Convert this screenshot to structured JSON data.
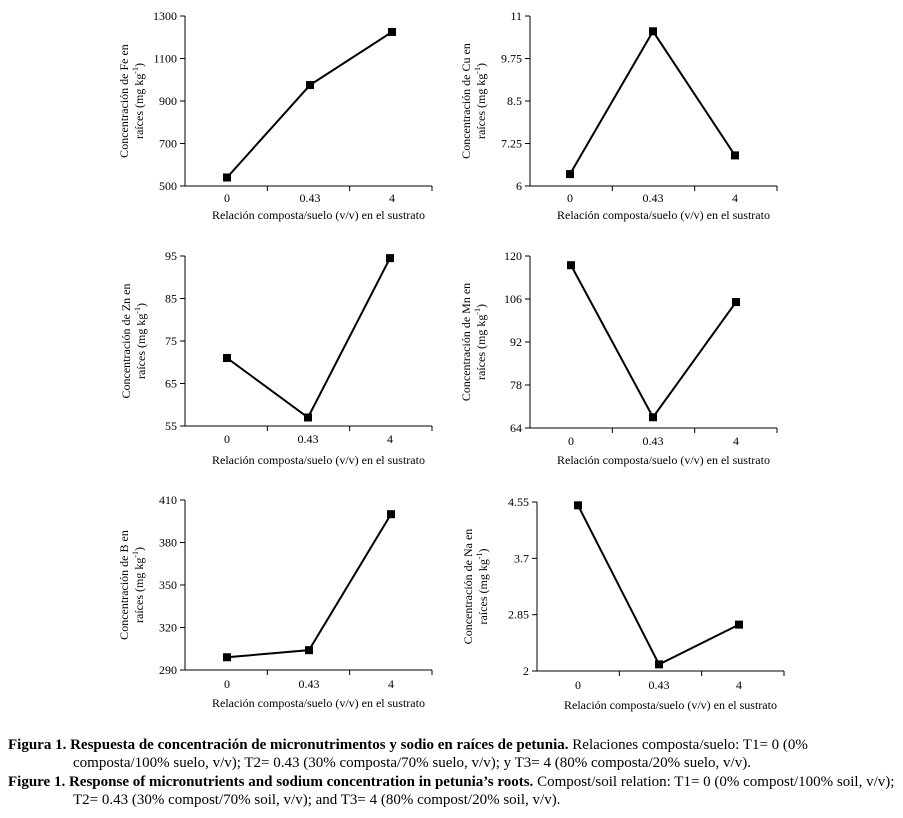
{
  "chart_data": [
    {
      "type": "line",
      "categories": [
        "0",
        "0.43",
        "4"
      ],
      "values": [
        540,
        975,
        1225
      ],
      "ylabel_line1": "Concentración de Fe en",
      "ylabel_line2_pre": "raíces (mg kg",
      "ylabel_sup": "-1",
      "ylabel_line2_post": ")",
      "xlabel": "Relación composta/suelo (v/v) en el sustrato",
      "ylim": [
        500,
        1300
      ],
      "yticks": [
        "500",
        "700",
        "900",
        "1100",
        "1300"
      ]
    },
    {
      "type": "line",
      "categories": [
        "0",
        "0.43",
        "4"
      ],
      "values": [
        6.35,
        10.55,
        6.9
      ],
      "ylabel_line1": "Concentración de Cu en",
      "ylabel_line2_pre": "raíces (mg kg",
      "ylabel_sup": "-1",
      "ylabel_line2_post": ")",
      "xlabel": "Relación composta/suelo (v/v) en el sustrato",
      "ylim": [
        6,
        11
      ],
      "yticks": [
        "6",
        "7.25",
        "8.5",
        "9.75",
        "11"
      ]
    },
    {
      "type": "line",
      "categories": [
        "0",
        "0.43",
        "4"
      ],
      "values": [
        71,
        57,
        94.5
      ],
      "ylabel_line1": "Concentración de Zn en",
      "ylabel_line2_pre": "raíces (mg kg",
      "ylabel_sup": "-1",
      "ylabel_line2_post": ")",
      "xlabel": "Relación composta/suelo (v/v) en el sustrato",
      "ylim": [
        55,
        95
      ],
      "yticks": [
        "55",
        "65",
        "75",
        "85",
        "95"
      ]
    },
    {
      "type": "line",
      "categories": [
        "0",
        "0.43",
        "4"
      ],
      "values": [
        117,
        67.5,
        105
      ],
      "ylabel_line1": "Concentración de Mn en",
      "ylabel_line2_pre": "raíces (mg kg",
      "ylabel_sup": "-1",
      "ylabel_line2_post": ")",
      "xlabel": "Relación composta/suelo (v/v) en el sustrato",
      "ylim": [
        64,
        120
      ],
      "yticks": [
        "64",
        "78",
        "92",
        "106",
        "120"
      ]
    },
    {
      "type": "line",
      "categories": [
        "0",
        "0.43",
        "4"
      ],
      "values": [
        299,
        304,
        400
      ],
      "ylabel_line1": "Concentración de B en",
      "ylabel_line2_pre": "raíces (mg kg",
      "ylabel_sup": "-1",
      "ylabel_line2_post": ")",
      "xlabel": "Relación composta/suelo (v/v) en el sustrato",
      "ylim": [
        290,
        410
      ],
      "yticks": [
        "290",
        "320",
        "350",
        "380",
        "410"
      ]
    },
    {
      "type": "line",
      "categories": [
        "0",
        "0.43",
        "4"
      ],
      "values": [
        4.5,
        2.1,
        2.7
      ],
      "ylabel_line1": "Concentración de Na en",
      "ylabel_line2_pre": "raíces (mg kg",
      "ylabel_sup": "-1",
      "ylabel_line2_post": ")",
      "xlabel": "Relación composta/suelo (v/v) en el sustrato",
      "ylim": [
        2,
        4.55
      ],
      "yticks": [
        "2",
        "2.85",
        "3.7",
        "4.55"
      ]
    }
  ],
  "caption": {
    "es_bold": "Figura 1. Respuesta de concentración de micronutrimentos y sodio en raíces de petunia.",
    "es_text": " Relaciones composta/suelo: T1= 0 (0% composta/100% suelo, v/v); T2= 0.43 (30% composta/70% suelo, v/v); y T3= 4 (80% composta/20% suelo, v/v).",
    "en_bold": "Figure 1. Response of micronutrients and sodium concentration in petunia’s roots.",
    "en_text": " Compost/soil relation: T1= 0 (0% compost/100% soil, v/v); T2= 0.43 (30% compost/70% soil, v/v); and T3= 4 (80% compost/20% soil, v/v)."
  }
}
